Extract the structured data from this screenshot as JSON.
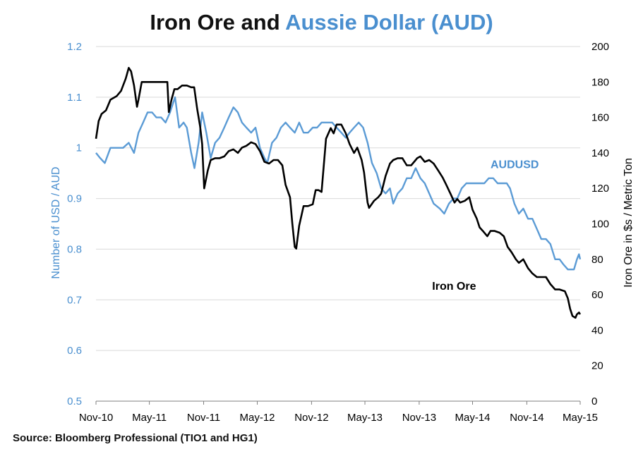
{
  "title": {
    "part1": "Iron Ore and ",
    "part2": "Aussie Dollar (AUD)"
  },
  "source": "Source: Bloomberg Professional (TIO1 and HG1)",
  "chart_data": {
    "type": "line",
    "title": "Iron Ore and Aussie Dollar (AUD)",
    "x_tick_labels": [
      "Nov-10",
      "May-11",
      "Nov-11",
      "May-12",
      "Nov-12",
      "May-13",
      "Nov-13",
      "May-14",
      "Nov-14",
      "May-15"
    ],
    "x_tick_dates": [
      "2010-11-01",
      "2011-05-01",
      "2011-11-01",
      "2012-05-01",
      "2012-11-01",
      "2013-05-01",
      "2013-11-01",
      "2014-05-01",
      "2014-11-01",
      "2015-05-01"
    ],
    "xlim": [
      "2010-11-01",
      "2015-05-01"
    ],
    "y_left": {
      "label": "Number of USD / AUD",
      "lim": [
        0.5,
        1.2
      ],
      "ticks": [
        "0.5",
        "0.6",
        "0.7",
        "0.8",
        "0.9",
        "1",
        "1.1",
        "1.2"
      ],
      "color": "#4a8fcf"
    },
    "y_right": {
      "label": "Iron Ore in $s / Metric Ton",
      "lim": [
        0,
        200
      ],
      "ticks": [
        "0",
        "20",
        "40",
        "60",
        "80",
        "100",
        "120",
        "140",
        "160",
        "180",
        "200"
      ],
      "color": "#000000"
    },
    "grid": "horizontal",
    "series": [
      {
        "name": "AUDUSD",
        "axis": "left",
        "color": "#5b9bd5",
        "points": [
          [
            "2010-11-01",
            0.99
          ],
          [
            "2010-11-15",
            0.98
          ],
          [
            "2010-12-01",
            0.97
          ],
          [
            "2010-12-20",
            1.0
          ],
          [
            "2011-01-10",
            1.0
          ],
          [
            "2011-02-01",
            1.0
          ],
          [
            "2011-02-20",
            1.01
          ],
          [
            "2011-03-10",
            0.99
          ],
          [
            "2011-03-25",
            1.03
          ],
          [
            "2011-04-10",
            1.05
          ],
          [
            "2011-04-25",
            1.07
          ],
          [
            "2011-05-10",
            1.07
          ],
          [
            "2011-05-25",
            1.06
          ],
          [
            "2011-06-10",
            1.06
          ],
          [
            "2011-06-25",
            1.05
          ],
          [
            "2011-07-10",
            1.07
          ],
          [
            "2011-07-27",
            1.1
          ],
          [
            "2011-08-10",
            1.04
          ],
          [
            "2011-08-25",
            1.05
          ],
          [
            "2011-09-05",
            1.04
          ],
          [
            "2011-09-20",
            0.99
          ],
          [
            "2011-10-01",
            0.96
          ],
          [
            "2011-10-15",
            1.01
          ],
          [
            "2011-10-27",
            1.07
          ],
          [
            "2011-11-10",
            1.03
          ],
          [
            "2011-11-25",
            0.98
          ],
          [
            "2011-12-10",
            1.01
          ],
          [
            "2011-12-25",
            1.02
          ],
          [
            "2012-01-10",
            1.04
          ],
          [
            "2012-01-25",
            1.06
          ],
          [
            "2012-02-10",
            1.08
          ],
          [
            "2012-02-25",
            1.07
          ],
          [
            "2012-03-10",
            1.05
          ],
          [
            "2012-03-25",
            1.04
          ],
          [
            "2012-04-10",
            1.03
          ],
          [
            "2012-04-25",
            1.04
          ],
          [
            "2012-05-10",
            1.0
          ],
          [
            "2012-05-25",
            0.98
          ],
          [
            "2012-06-04",
            0.97
          ],
          [
            "2012-06-20",
            1.01
          ],
          [
            "2012-07-05",
            1.02
          ],
          [
            "2012-07-20",
            1.04
          ],
          [
            "2012-08-05",
            1.05
          ],
          [
            "2012-08-20",
            1.04
          ],
          [
            "2012-09-05",
            1.03
          ],
          [
            "2012-09-20",
            1.05
          ],
          [
            "2012-10-05",
            1.03
          ],
          [
            "2012-10-20",
            1.03
          ],
          [
            "2012-11-05",
            1.04
          ],
          [
            "2012-11-20",
            1.04
          ],
          [
            "2012-12-05",
            1.05
          ],
          [
            "2012-12-20",
            1.05
          ],
          [
            "2013-01-10",
            1.05
          ],
          [
            "2013-01-25",
            1.04
          ],
          [
            "2013-02-10",
            1.03
          ],
          [
            "2013-02-25",
            1.02
          ],
          [
            "2013-03-10",
            1.03
          ],
          [
            "2013-03-25",
            1.04
          ],
          [
            "2013-04-10",
            1.05
          ],
          [
            "2013-04-25",
            1.04
          ],
          [
            "2013-05-10",
            1.01
          ],
          [
            "2013-05-25",
            0.97
          ],
          [
            "2013-06-10",
            0.95
          ],
          [
            "2013-06-25",
            0.92
          ],
          [
            "2013-07-10",
            0.91
          ],
          [
            "2013-07-25",
            0.92
          ],
          [
            "2013-08-05",
            0.89
          ],
          [
            "2013-08-20",
            0.91
          ],
          [
            "2013-09-05",
            0.92
          ],
          [
            "2013-09-20",
            0.94
          ],
          [
            "2013-10-05",
            0.94
          ],
          [
            "2013-10-20",
            0.96
          ],
          [
            "2013-11-05",
            0.94
          ],
          [
            "2013-11-20",
            0.93
          ],
          [
            "2013-12-05",
            0.91
          ],
          [
            "2013-12-20",
            0.89
          ],
          [
            "2014-01-10",
            0.88
          ],
          [
            "2014-01-25",
            0.87
          ],
          [
            "2014-02-10",
            0.89
          ],
          [
            "2014-02-25",
            0.9
          ],
          [
            "2014-03-10",
            0.9
          ],
          [
            "2014-03-25",
            0.92
          ],
          [
            "2014-04-10",
            0.93
          ],
          [
            "2014-04-25",
            0.93
          ],
          [
            "2014-05-10",
            0.93
          ],
          [
            "2014-05-25",
            0.93
          ],
          [
            "2014-06-10",
            0.93
          ],
          [
            "2014-06-25",
            0.94
          ],
          [
            "2014-07-10",
            0.94
          ],
          [
            "2014-07-25",
            0.93
          ],
          [
            "2014-08-10",
            0.93
          ],
          [
            "2014-08-25",
            0.93
          ],
          [
            "2014-09-05",
            0.92
          ],
          [
            "2014-09-20",
            0.89
          ],
          [
            "2014-10-05",
            0.87
          ],
          [
            "2014-10-20",
            0.88
          ],
          [
            "2014-11-05",
            0.86
          ],
          [
            "2014-11-20",
            0.86
          ],
          [
            "2014-12-05",
            0.84
          ],
          [
            "2014-12-20",
            0.82
          ],
          [
            "2015-01-05",
            0.82
          ],
          [
            "2015-01-20",
            0.81
          ],
          [
            "2015-02-05",
            0.78
          ],
          [
            "2015-02-20",
            0.78
          ],
          [
            "2015-03-05",
            0.77
          ],
          [
            "2015-03-20",
            0.76
          ],
          [
            "2015-04-01",
            0.76
          ],
          [
            "2015-04-10",
            0.76
          ],
          [
            "2015-04-20",
            0.78
          ],
          [
            "2015-04-27",
            0.79
          ],
          [
            "2015-05-01",
            0.78
          ]
        ]
      },
      {
        "name": "Iron Ore",
        "axis": "right",
        "color": "#000000",
        "points": [
          [
            "2010-11-01",
            148
          ],
          [
            "2010-11-10",
            158
          ],
          [
            "2010-11-20",
            162
          ],
          [
            "2010-12-05",
            164
          ],
          [
            "2010-12-20",
            170
          ],
          [
            "2011-01-10",
            172
          ],
          [
            "2011-01-25",
            175
          ],
          [
            "2011-02-10",
            182
          ],
          [
            "2011-02-20",
            188
          ],
          [
            "2011-02-28",
            186
          ],
          [
            "2011-03-10",
            178
          ],
          [
            "2011-03-20",
            166
          ],
          [
            "2011-03-25",
            170
          ],
          [
            "2011-04-05",
            180
          ],
          [
            "2011-04-15",
            180
          ],
          [
            "2011-05-01",
            180
          ],
          [
            "2011-05-20",
            180
          ],
          [
            "2011-06-05",
            180
          ],
          [
            "2011-06-20",
            180
          ],
          [
            "2011-07-01",
            180
          ],
          [
            "2011-07-06",
            163
          ],
          [
            "2011-07-15",
            170
          ],
          [
            "2011-07-25",
            176
          ],
          [
            "2011-08-05",
            176
          ],
          [
            "2011-08-20",
            178
          ],
          [
            "2011-09-05",
            178
          ],
          [
            "2011-09-20",
            177
          ],
          [
            "2011-09-30",
            177
          ],
          [
            "2011-10-10",
            165
          ],
          [
            "2011-10-20",
            155
          ],
          [
            "2011-10-27",
            145
          ],
          [
            "2011-11-03",
            120
          ],
          [
            "2011-11-15",
            130
          ],
          [
            "2011-11-25",
            136
          ],
          [
            "2011-12-10",
            137
          ],
          [
            "2011-12-25",
            137
          ],
          [
            "2012-01-10",
            138
          ],
          [
            "2012-01-25",
            141
          ],
          [
            "2012-02-10",
            142
          ],
          [
            "2012-02-25",
            140
          ],
          [
            "2012-03-10",
            143
          ],
          [
            "2012-03-25",
            144
          ],
          [
            "2012-04-10",
            146
          ],
          [
            "2012-04-25",
            145
          ],
          [
            "2012-05-10",
            141
          ],
          [
            "2012-05-25",
            135
          ],
          [
            "2012-06-10",
            134
          ],
          [
            "2012-06-25",
            136
          ],
          [
            "2012-07-10",
            136
          ],
          [
            "2012-07-25",
            133
          ],
          [
            "2012-08-05",
            122
          ],
          [
            "2012-08-20",
            115
          ],
          [
            "2012-08-28",
            100
          ],
          [
            "2012-09-05",
            87
          ],
          [
            "2012-09-10",
            86
          ],
          [
            "2012-09-20",
            99
          ],
          [
            "2012-10-05",
            110
          ],
          [
            "2012-10-20",
            110
          ],
          [
            "2012-11-05",
            111
          ],
          [
            "2012-11-15",
            119
          ],
          [
            "2012-11-25",
            119
          ],
          [
            "2012-12-05",
            118
          ],
          [
            "2012-12-20",
            148
          ],
          [
            "2013-01-05",
            154
          ],
          [
            "2013-01-15",
            151
          ],
          [
            "2013-01-25",
            156
          ],
          [
            "2013-02-10",
            156
          ],
          [
            "2013-02-25",
            151
          ],
          [
            "2013-03-10",
            145
          ],
          [
            "2013-03-25",
            140
          ],
          [
            "2013-04-05",
            143
          ],
          [
            "2013-04-20",
            136
          ],
          [
            "2013-04-28",
            129
          ],
          [
            "2013-05-05",
            119
          ],
          [
            "2013-05-10",
            112
          ],
          [
            "2013-05-15",
            109
          ],
          [
            "2013-06-01",
            113
          ],
          [
            "2013-06-15",
            115
          ],
          [
            "2013-06-25",
            117
          ],
          [
            "2013-07-10",
            127
          ],
          [
            "2013-07-25",
            134
          ],
          [
            "2013-08-05",
            136
          ],
          [
            "2013-08-20",
            137
          ],
          [
            "2013-09-05",
            137
          ],
          [
            "2013-09-20",
            133
          ],
          [
            "2013-10-05",
            133
          ],
          [
            "2013-10-15",
            135
          ],
          [
            "2013-10-25",
            137
          ],
          [
            "2013-11-05",
            138
          ],
          [
            "2013-11-20",
            135
          ],
          [
            "2013-12-05",
            136
          ],
          [
            "2013-12-20",
            134
          ],
          [
            "2014-01-05",
            130
          ],
          [
            "2014-01-20",
            126
          ],
          [
            "2014-02-01",
            122
          ],
          [
            "2014-02-15",
            117
          ],
          [
            "2014-03-01",
            112
          ],
          [
            "2014-03-10",
            114
          ],
          [
            "2014-03-20",
            112
          ],
          [
            "2014-04-05",
            113
          ],
          [
            "2014-04-20",
            115
          ],
          [
            "2014-05-01",
            108
          ],
          [
            "2014-05-15",
            103
          ],
          [
            "2014-05-25",
            98
          ],
          [
            "2014-06-05",
            96
          ],
          [
            "2014-06-20",
            93
          ],
          [
            "2014-07-01",
            96
          ],
          [
            "2014-07-15",
            96
          ],
          [
            "2014-08-01",
            95
          ],
          [
            "2014-08-15",
            93
          ],
          [
            "2014-08-28",
            87
          ],
          [
            "2014-09-10",
            84
          ],
          [
            "2014-09-25",
            80
          ],
          [
            "2014-10-05",
            78
          ],
          [
            "2014-10-20",
            80
          ],
          [
            "2014-11-05",
            75
          ],
          [
            "2014-11-20",
            72
          ],
          [
            "2014-12-05",
            70
          ],
          [
            "2014-12-20",
            70
          ],
          [
            "2015-01-05",
            70
          ],
          [
            "2015-01-20",
            66
          ],
          [
            "2015-02-05",
            63
          ],
          [
            "2015-02-20",
            63
          ],
          [
            "2015-03-10",
            62
          ],
          [
            "2015-03-20",
            58
          ],
          [
            "2015-03-28",
            52
          ],
          [
            "2015-04-05",
            48
          ],
          [
            "2015-04-15",
            47
          ],
          [
            "2015-04-20",
            49
          ],
          [
            "2015-04-27",
            50
          ],
          [
            "2015-05-01",
            49
          ]
        ]
      }
    ],
    "annotations": [
      {
        "text": "AUDUSD",
        "series": "AUDUSD",
        "near": [
          "2014-07-01",
          0.96
        ]
      },
      {
        "text": "Iron Ore",
        "series": "Iron Ore",
        "near": [
          "2013-12-15",
          0.72
        ]
      }
    ]
  }
}
